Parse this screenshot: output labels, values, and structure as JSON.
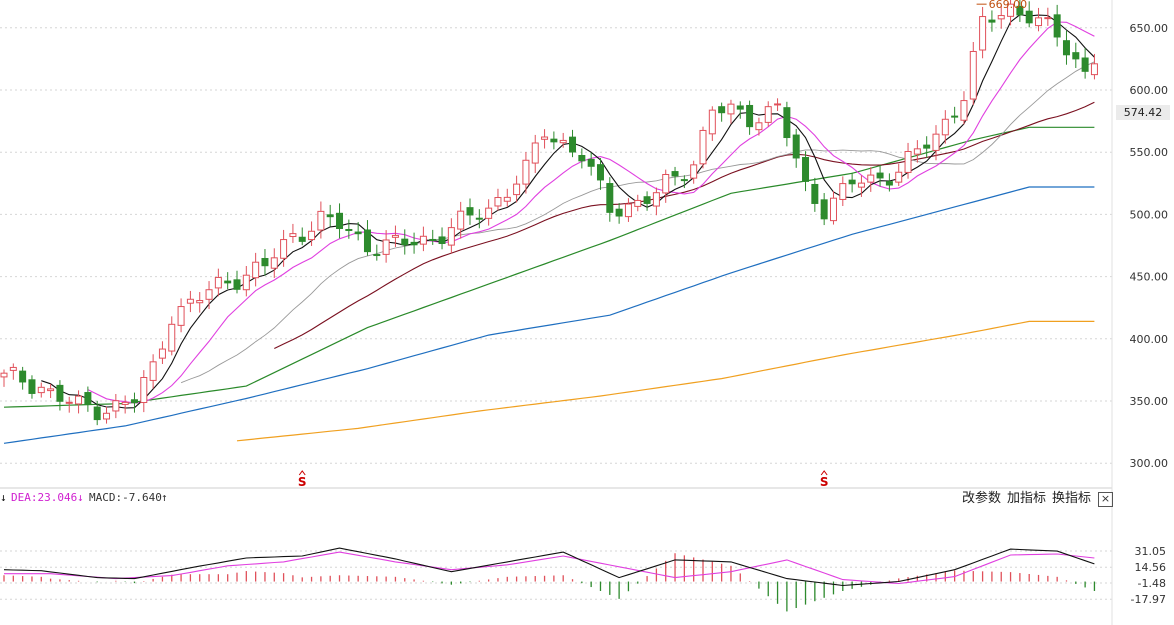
{
  "indicator_header": {
    "dea_arrow": "↓",
    "dea_text": "DEA:23.046",
    "dea_trend": "↓",
    "macd_text": "MACD:-7.640",
    "macd_trend": "↑"
  },
  "toolbar": {
    "params_label": "改参数",
    "add_label": "加指标",
    "switch_label": "换指标",
    "close_label": "×"
  },
  "current_price_label": "574.42",
  "high_label": "669.00",
  "signal_marks": [
    "S",
    "S"
  ],
  "colors": {
    "up": "#e0505a",
    "down": "#2d8a2d",
    "ma5": "#111111",
    "ma10": "#e040e0",
    "ma20": "#999999",
    "ma30": "#7a1020",
    "ma60": "#2a8a2a",
    "ma120": "#1f6fc0",
    "ma250": "#f0a020",
    "dif": "#111111",
    "dea": "#e040e0",
    "signal": "#cc0000"
  },
  "chart_data": [
    {
      "type": "candlestick",
      "y_axis": {
        "ticks": [
          300,
          350,
          400,
          450,
          500,
          550,
          600,
          650
        ],
        "tick_labels": [
          "300.00",
          "350.00",
          "400.00",
          "450.00",
          "500.00",
          "550.00",
          "600.00",
          "650.00"
        ],
        "range": [
          288,
          675
        ]
      },
      "grid": true,
      "anchors": [
        [
          0,
          369
        ],
        [
          4,
          362
        ],
        [
          8,
          345
        ],
        [
          10,
          343
        ],
        [
          14,
          351
        ],
        [
          16,
          375
        ],
        [
          18,
          420
        ],
        [
          20,
          428
        ],
        [
          24,
          447
        ],
        [
          28,
          458
        ],
        [
          31,
          483
        ],
        [
          34,
          496
        ],
        [
          36,
          491
        ],
        [
          39,
          476
        ],
        [
          42,
          475
        ],
        [
          46,
          481
        ],
        [
          52,
          505
        ],
        [
          56,
          535
        ],
        [
          58,
          567
        ],
        [
          62,
          548
        ],
        [
          65,
          504
        ],
        [
          68,
          510
        ],
        [
          70,
          516
        ],
        [
          74,
          543
        ],
        [
          76,
          585
        ],
        [
          80,
          578
        ],
        [
          83,
          586
        ],
        [
          86,
          520
        ],
        [
          88,
          506
        ],
        [
          91,
          525
        ],
        [
          93,
          526
        ],
        [
          96,
          537
        ],
        [
          100,
          562
        ],
        [
          103,
          598
        ],
        [
          105,
          652
        ],
        [
          108,
          666
        ],
        [
          110,
          662
        ],
        [
          113,
          642
        ],
        [
          116,
          615
        ],
        [
          117,
          628
        ]
      ],
      "candle_count": 118,
      "moving_averages": {
        "ma250": [
          [
            25,
            318
          ],
          [
            38,
            328
          ],
          [
            51,
            342
          ],
          [
            64,
            354
          ],
          [
            77,
            368
          ],
          [
            90,
            387
          ],
          [
            103,
            404
          ],
          [
            110,
            414
          ]
        ],
        "ma120": [
          [
            0,
            316
          ],
          [
            13,
            330
          ],
          [
            26,
            352
          ],
          [
            39,
            376
          ],
          [
            52,
            403
          ],
          [
            65,
            419
          ],
          [
            78,
            453
          ],
          [
            91,
            484
          ],
          [
            104,
            510
          ],
          [
            110,
            522
          ]
        ],
        "ma60": [
          [
            0,
            345
          ],
          [
            13,
            348
          ],
          [
            26,
            362
          ],
          [
            39,
            409
          ],
          [
            52,
            444
          ],
          [
            65,
            479
          ],
          [
            78,
            517
          ],
          [
            91,
            533
          ],
          [
            104,
            560
          ],
          [
            110,
            570
          ]
        ]
      },
      "signals": [
        {
          "x": 32,
          "label": "S"
        },
        {
          "x": 88,
          "label": "S"
        }
      ],
      "last_price": 574.42,
      "high_annotation": {
        "x": 105,
        "value": 669.0
      }
    },
    {
      "type": "line+bar",
      "series": [
        {
          "name": "DEA",
          "last": 23.046
        },
        {
          "name": "MACD",
          "last": -7.64
        }
      ],
      "y_axis": {
        "ticks": [
          31.05,
          14.56,
          -1.48,
          -17.97
        ],
        "tick_labels": [
          "31.05",
          "14.56",
          "-1.48",
          "-17.97"
        ],
        "range": [
          -22,
          36
        ]
      },
      "dea": [
        [
          0,
          8
        ],
        [
          5,
          8
        ],
        [
          12,
          3
        ],
        [
          18,
          6
        ],
        [
          24,
          16
        ],
        [
          30,
          20
        ],
        [
          36,
          30
        ],
        [
          42,
          20
        ],
        [
          48,
          12
        ],
        [
          54,
          17
        ],
        [
          60,
          26
        ],
        [
          66,
          15
        ],
        [
          72,
          4
        ],
        [
          78,
          10
        ],
        [
          84,
          22
        ],
        [
          90,
          2
        ],
        [
          96,
          -2
        ],
        [
          102,
          5
        ],
        [
          108,
          27
        ],
        [
          113,
          28
        ],
        [
          117,
          24
        ]
      ],
      "dif": [
        [
          0,
          12
        ],
        [
          4,
          11
        ],
        [
          10,
          4
        ],
        [
          14,
          3
        ],
        [
          20,
          14
        ],
        [
          26,
          24
        ],
        [
          32,
          26
        ],
        [
          36,
          34
        ],
        [
          42,
          23
        ],
        [
          48,
          10
        ],
        [
          54,
          20
        ],
        [
          60,
          30
        ],
        [
          66,
          4
        ],
        [
          72,
          22
        ],
        [
          78,
          20
        ],
        [
          84,
          3
        ],
        [
          90,
          -4
        ],
        [
          96,
          0
        ],
        [
          102,
          12
        ],
        [
          108,
          33
        ],
        [
          113,
          31
        ],
        [
          117,
          18
        ]
      ]
    }
  ]
}
